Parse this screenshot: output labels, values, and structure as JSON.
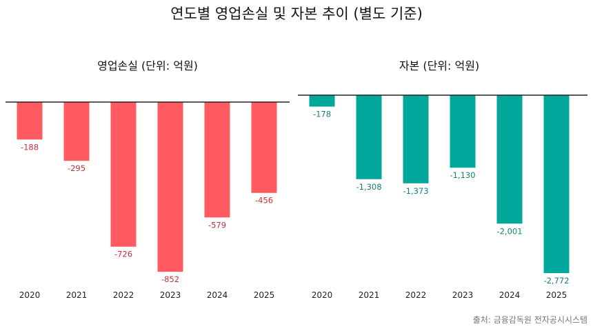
{
  "title": "연도별 영업손실 및 자본 추이 (별도 기준)",
  "source": "출처: 금융감독원 전자공시시스템",
  "colors": {
    "loss_bar": "#FF5A5F",
    "loss_label": "#C0313A",
    "capital_bar": "#00A79A",
    "capital_label": "#157F74",
    "zero_line": "#222222"
  },
  "chart_data": [
    {
      "type": "bar",
      "title": "영업손실 (단위: 억원)",
      "categories": [
        "2020",
        "2021",
        "2022",
        "2023",
        "2024",
        "2025"
      ],
      "values": [
        -188,
        -295,
        -726,
        -852,
        -579,
        -456
      ],
      "data_labels": [
        "-188",
        "-295",
        "-726",
        "-852",
        "-579",
        "-456"
      ],
      "ylim": [
        -900,
        0
      ],
      "grid": false
    },
    {
      "type": "bar",
      "title": "자본 (단위: 억원)",
      "categories": [
        "2020",
        "2021",
        "2022",
        "2023",
        "2024",
        "2025"
      ],
      "values": [
        -178,
        -1308,
        -1373,
        -1130,
        -2001,
        -2772
      ],
      "data_labels": [
        "-178",
        "-1,308",
        "-1,373",
        "-1,130",
        "-2,001",
        "-2,772"
      ],
      "ylim": [
        -2900,
        0
      ],
      "grid": false
    }
  ]
}
